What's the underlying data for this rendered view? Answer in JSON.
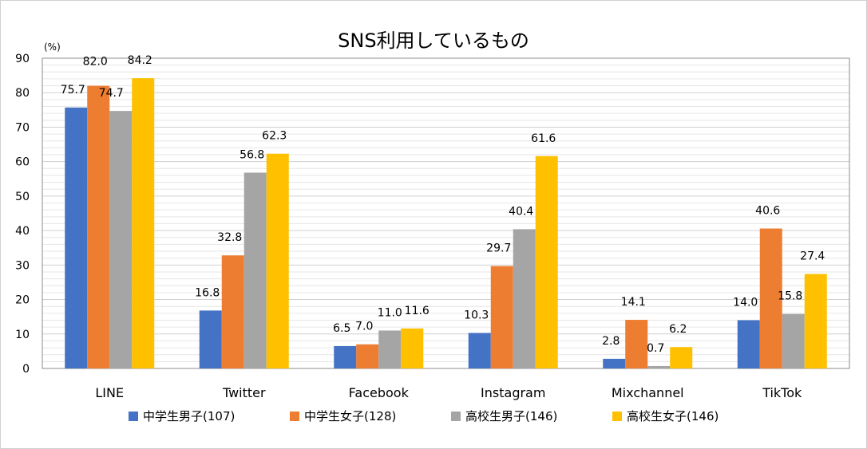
{
  "chart_data": {
    "type": "bar",
    "title": "SNS利用しているもの",
    "unit_label": "(%)",
    "ylim": [
      0,
      90
    ],
    "yticks": [
      0,
      10,
      20,
      30,
      40,
      50,
      60,
      70,
      80,
      90
    ],
    "categories": [
      "LINE",
      "Twitter",
      "Facebook",
      "Instagram",
      "Mixchannel",
      "TikTok"
    ],
    "series": [
      {
        "name": "中学生男子(107)",
        "color": "#4472C4",
        "values": [
          75.7,
          16.8,
          6.5,
          10.3,
          2.8,
          14.0
        ],
        "labels": [
          "75.7",
          "16.8",
          "6.5",
          "10.3",
          "2.8",
          "14.0"
        ]
      },
      {
        "name": "中学生女子(128)",
        "color": "#ED7D31",
        "values": [
          82.0,
          32.8,
          7.0,
          29.7,
          14.1,
          40.6
        ],
        "labels": [
          "82.0",
          "32.8",
          "7.0",
          "29.7",
          "14.1",
          "40.6"
        ]
      },
      {
        "name": "高校生男子(146)",
        "color": "#A5A5A5",
        "values": [
          74.7,
          56.8,
          11.0,
          40.4,
          0.7,
          15.8
        ],
        "labels": [
          "74.7",
          "56.8",
          "11.0",
          "40.4",
          "0.7",
          "15.8"
        ]
      },
      {
        "name": "高校生女子(146)",
        "color": "#FFC000",
        "values": [
          84.2,
          62.3,
          11.6,
          61.6,
          6.2,
          27.4
        ],
        "labels": [
          "84.2",
          "62.3",
          "11.6",
          "61.6",
          "6.2",
          "27.4"
        ]
      }
    ],
    "grid": true,
    "legend_position": "bottom"
  }
}
